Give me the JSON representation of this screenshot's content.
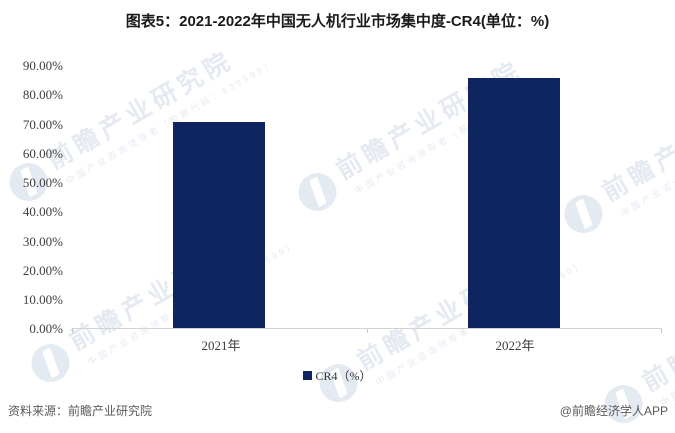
{
  "title": "图表5：2021-2022年中国无人机行业市场集中度-CR4(单位：%)",
  "chart_data": {
    "type": "bar",
    "categories": [
      "2021年",
      "2022年"
    ],
    "series": [
      {
        "name": "CR4（%）",
        "values": [
          70,
          85
        ]
      }
    ],
    "unit": "%",
    "ylim": [
      0,
      90
    ],
    "ytick_step": 10,
    "ytick_labels": [
      "90.00%",
      "80.00%",
      "70.00%",
      "60.00%",
      "50.00%",
      "40.00%",
      "30.00%",
      "20.00%",
      "10.00%",
      "0.00%"
    ],
    "grid": false,
    "legend_position": "bottom",
    "bar_color": "#0f2560",
    "axis_line_color": "#d2d2d2"
  },
  "legend": {
    "label": "CR4（%）"
  },
  "footer": {
    "source": "资料来源：前瞻产业研究院",
    "credit": "@前瞻经济学人APP"
  },
  "watermark": {
    "brand": "前瞻产业研究院",
    "tagline": "中国产业咨询领导者（股票代码：839599）"
  }
}
